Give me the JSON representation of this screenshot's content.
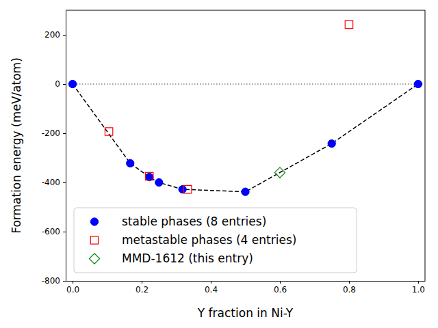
{
  "chart_data": {
    "type": "scatter",
    "x_label": "Y fraction in Ni-Y",
    "y_label": "Formation energy (meV/atom)",
    "xlim": [
      -0.02,
      1.02
    ],
    "ylim": [
      -800,
      300
    ],
    "xticks": [
      {
        "value": 0,
        "label": "0.0"
      },
      0.2,
      0.4,
      0.6,
      0.8,
      {
        "value": 1,
        "label": "1.0"
      }
    ],
    "yticks": [
      -800,
      -600,
      -400,
      -200,
      0,
      200
    ],
    "hlines": [
      0
    ],
    "legend": "lower left",
    "series": [
      {
        "name": "stable phases (8 entries)",
        "color": "#0000ff",
        "marker": "circle",
        "line_style": "dashed",
        "x": [
          0,
          0.1667,
          0.2222,
          0.25,
          0.318,
          0.5,
          0.75,
          1
        ],
        "values": [
          0,
          -322,
          -378,
          -400,
          -428,
          -438,
          -242,
          0
        ]
      },
      {
        "name": "metastable phases (4 entries)",
        "color": "#ff0000",
        "marker": "square-open",
        "x": [
          0.105,
          0.222,
          0.333,
          0.8
        ],
        "values": [
          -193,
          -375,
          -428,
          242
        ]
      },
      {
        "name": "MMD-1612 (this entry)",
        "color": "#008000",
        "marker": "diamond-open",
        "x": [
          0.6
        ],
        "values": [
          -360
        ]
      }
    ]
  }
}
